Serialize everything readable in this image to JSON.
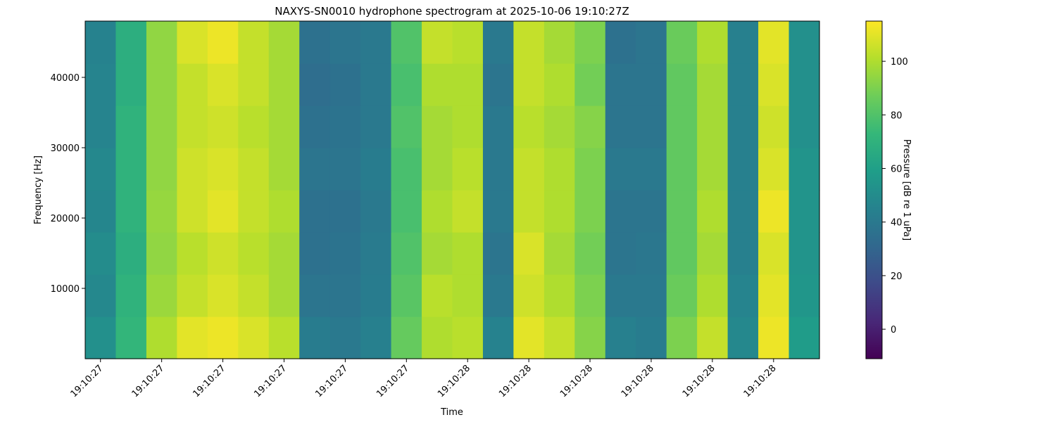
{
  "chart_data": {
    "type": "heatmap",
    "title": "NAXYS-SN0010 hydrophone spectrogram at 2025-10-06 19:10:27Z",
    "x_label": "Time",
    "y_label": "Frequency [Hz]",
    "colorbar_label": "Pressure [dB re 1 uPa]",
    "colormap": "viridis",
    "x": [
      27.4,
      27.45,
      27.5,
      27.55,
      27.6,
      27.65,
      27.7,
      27.75,
      27.8,
      27.85,
      27.9,
      27.95,
      28.0,
      28.05,
      28.1,
      28.15,
      28.2,
      28.25,
      28.3,
      28.35,
      28.4,
      28.45,
      28.5,
      28.55
    ],
    "y": [
      3000,
      9000,
      15000,
      21000,
      27000,
      33000,
      39000,
      45000
    ],
    "z": [
      [
        52,
        72,
        100,
        110,
        112,
        108,
        102,
        42,
        40,
        44,
        85,
        100,
        102,
        45,
        110,
        104,
        92,
        44,
        42,
        90,
        104,
        48,
        112,
        58
      ],
      [
        48,
        70,
        96,
        104,
        108,
        104,
        98,
        38,
        38,
        42,
        82,
        102,
        100,
        40,
        106,
        100,
        90,
        40,
        40,
        86,
        100,
        46,
        110,
        55
      ],
      [
        50,
        68,
        94,
        102,
        106,
        102,
        98,
        36,
        37,
        41,
        80,
        98,
        100,
        38,
        108,
        98,
        88,
        38,
        39,
        84,
        98,
        44,
        108,
        54
      ],
      [
        47,
        70,
        95,
        106,
        110,
        104,
        100,
        36,
        36,
        40,
        78,
        100,
        104,
        40,
        104,
        100,
        90,
        38,
        38,
        84,
        100,
        44,
        112,
        54
      ],
      [
        48,
        70,
        94,
        106,
        108,
        104,
        98,
        38,
        38,
        42,
        78,
        98,
        102,
        40,
        104,
        100,
        90,
        40,
        40,
        84,
        98,
        44,
        108,
        54
      ],
      [
        46,
        70,
        94,
        104,
        106,
        102,
        98,
        36,
        37,
        40,
        80,
        98,
        100,
        40,
        102,
        98,
        92,
        38,
        38,
        84,
        98,
        44,
        106,
        52
      ],
      [
        46,
        68,
        94,
        104,
        108,
        104,
        98,
        34,
        36,
        40,
        78,
        100,
        100,
        38,
        104,
        100,
        88,
        38,
        38,
        84,
        98,
        44,
        108,
        52
      ],
      [
        45,
        68,
        94,
        108,
        112,
        104,
        98,
        36,
        38,
        40,
        80,
        104,
        102,
        40,
        104,
        98,
        90,
        36,
        38,
        86,
        100,
        44,
        110,
        52
      ]
    ],
    "xlim": [
      27.375,
      28.575
    ],
    "xticks": [
      {
        "value": 27.4,
        "label": "19:10:27"
      },
      {
        "value": 27.5,
        "label": "19:10:27"
      },
      {
        "value": 27.6,
        "label": "19:10:27"
      },
      {
        "value": 27.7,
        "label": "19:10:27"
      },
      {
        "value": 27.8,
        "label": "19:10:27"
      },
      {
        "value": 27.9,
        "label": "19:10:27"
      },
      {
        "value": 28.0,
        "label": "19:10:28"
      },
      {
        "value": 28.1,
        "label": "19:10:28"
      },
      {
        "value": 28.2,
        "label": "19:10:28"
      },
      {
        "value": 28.3,
        "label": "19:10:28"
      },
      {
        "value": 28.4,
        "label": "19:10:28"
      },
      {
        "value": 28.5,
        "label": "19:10:28"
      }
    ],
    "ylim": [
      0,
      48000
    ],
    "yticks": [
      10000,
      20000,
      30000,
      40000
    ],
    "clim": [
      -11,
      115
    ],
    "cticks": [
      0,
      20,
      40,
      60,
      80,
      100
    ]
  }
}
